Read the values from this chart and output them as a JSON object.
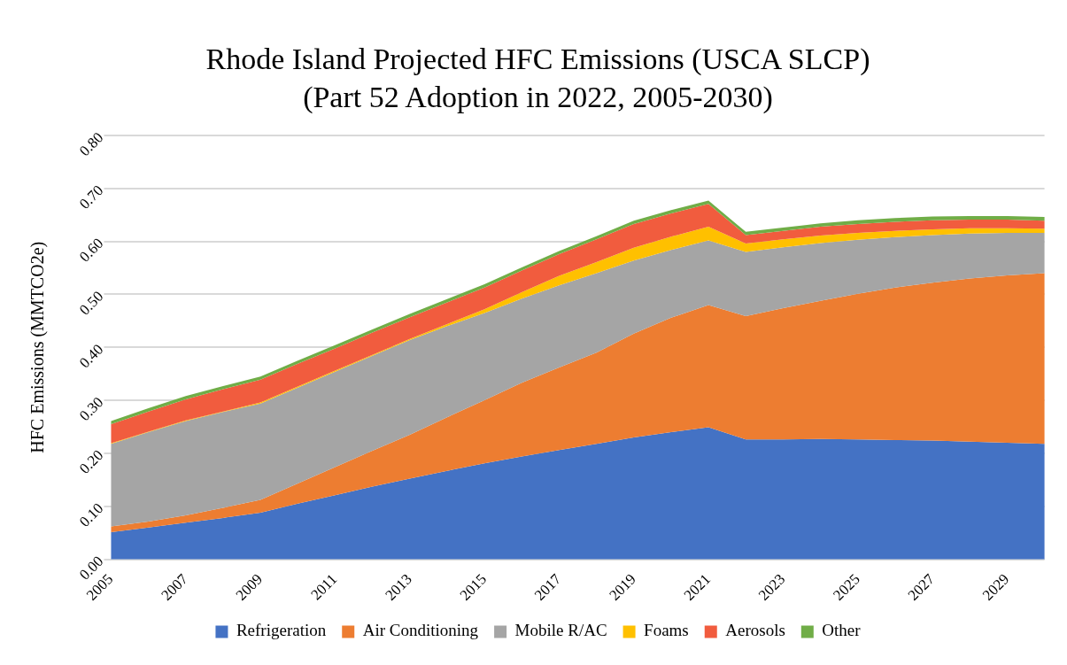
{
  "chart_data": {
    "type": "area",
    "title": "Rhode Island Projected HFC Emissions (USCA SLCP)",
    "subtitle": "(Part 52 Adoption in 2022, 2005-2030)",
    "ylabel": "HFC Emissions (MMTCO2e)",
    "categories": [
      "2005",
      null,
      "2007",
      null,
      "2009",
      null,
      "2011",
      null,
      "2013",
      null,
      "2015",
      null,
      "2017",
      null,
      "2019",
      null,
      "2021",
      null,
      "2023",
      null,
      "2025",
      null,
      "2027",
      null,
      "2029",
      null
    ],
    "stacked": true,
    "ylim": [
      0,
      0.8
    ],
    "yticks": [
      {
        "value": 0,
        "label": "0.00"
      },
      {
        "value": 0.1,
        "label": "0.10"
      },
      {
        "value": 0.2,
        "label": "0.20"
      },
      {
        "value": 0.3,
        "label": "0.30"
      },
      {
        "value": 0.4,
        "label": "0.40"
      },
      {
        "value": 0.5,
        "label": "0.50"
      },
      {
        "value": 0.6,
        "label": "0.60"
      },
      {
        "value": 0.7,
        "label": "0.70"
      },
      {
        "value": 0.8,
        "label": "0.80"
      }
    ],
    "grid": "y",
    "legend": "bottom",
    "series": [
      {
        "name": "Refrigeration",
        "color": "#4472c4",
        "values": [
          0.051,
          0.06,
          0.069,
          0.078,
          0.088,
          0.105,
          0.121,
          0.137,
          0.152,
          0.167,
          0.181,
          0.194,
          0.206,
          0.218,
          0.23,
          0.24,
          0.249,
          0.226,
          0.226,
          0.227,
          0.226,
          0.225,
          0.224,
          0.222,
          0.22,
          0.218
        ]
      },
      {
        "name": "Air Conditioning",
        "color": "#ed7d31",
        "values": [
          0.011,
          0.011,
          0.014,
          0.019,
          0.024,
          0.038,
          0.053,
          0.068,
          0.083,
          0.101,
          0.119,
          0.139,
          0.156,
          0.172,
          0.196,
          0.216,
          0.231,
          0.233,
          0.248,
          0.261,
          0.275,
          0.288,
          0.298,
          0.308,
          0.316,
          0.322
        ]
      },
      {
        "name": "Mobile R/AC",
        "color": "#a5a5a5",
        "values": [
          0.156,
          0.169,
          0.178,
          0.181,
          0.182,
          0.181,
          0.18,
          0.179,
          0.179,
          0.172,
          0.165,
          0.159,
          0.155,
          0.15,
          0.138,
          0.128,
          0.122,
          0.121,
          0.115,
          0.109,
          0.102,
          0.095,
          0.09,
          0.085,
          0.08,
          0.076
        ]
      },
      {
        "name": "Foams",
        "color": "#ffc000",
        "values": [
          0.001,
          0.001,
          0.001,
          0.001,
          0.002,
          0.002,
          0.002,
          0.002,
          0.002,
          0.004,
          0.007,
          0.012,
          0.018,
          0.021,
          0.024,
          0.025,
          0.026,
          0.016,
          0.015,
          0.014,
          0.013,
          0.012,
          0.011,
          0.01,
          0.009,
          0.008
        ]
      },
      {
        "name": "Aerosols",
        "color": "#f15c3e",
        "values": [
          0.036,
          0.038,
          0.04,
          0.042,
          0.043,
          0.043,
          0.042,
          0.042,
          0.041,
          0.041,
          0.041,
          0.041,
          0.041,
          0.043,
          0.045,
          0.044,
          0.043,
          0.016,
          0.016,
          0.017,
          0.017,
          0.017,
          0.017,
          0.016,
          0.016,
          0.015
        ]
      },
      {
        "name": "Other",
        "color": "#70ad47",
        "values": [
          0.006,
          0.006,
          0.006,
          0.006,
          0.006,
          0.006,
          0.006,
          0.006,
          0.006,
          0.006,
          0.006,
          0.006,
          0.006,
          0.006,
          0.006,
          0.006,
          0.006,
          0.006,
          0.006,
          0.006,
          0.007,
          0.007,
          0.007,
          0.007,
          0.007,
          0.007
        ]
      }
    ]
  }
}
